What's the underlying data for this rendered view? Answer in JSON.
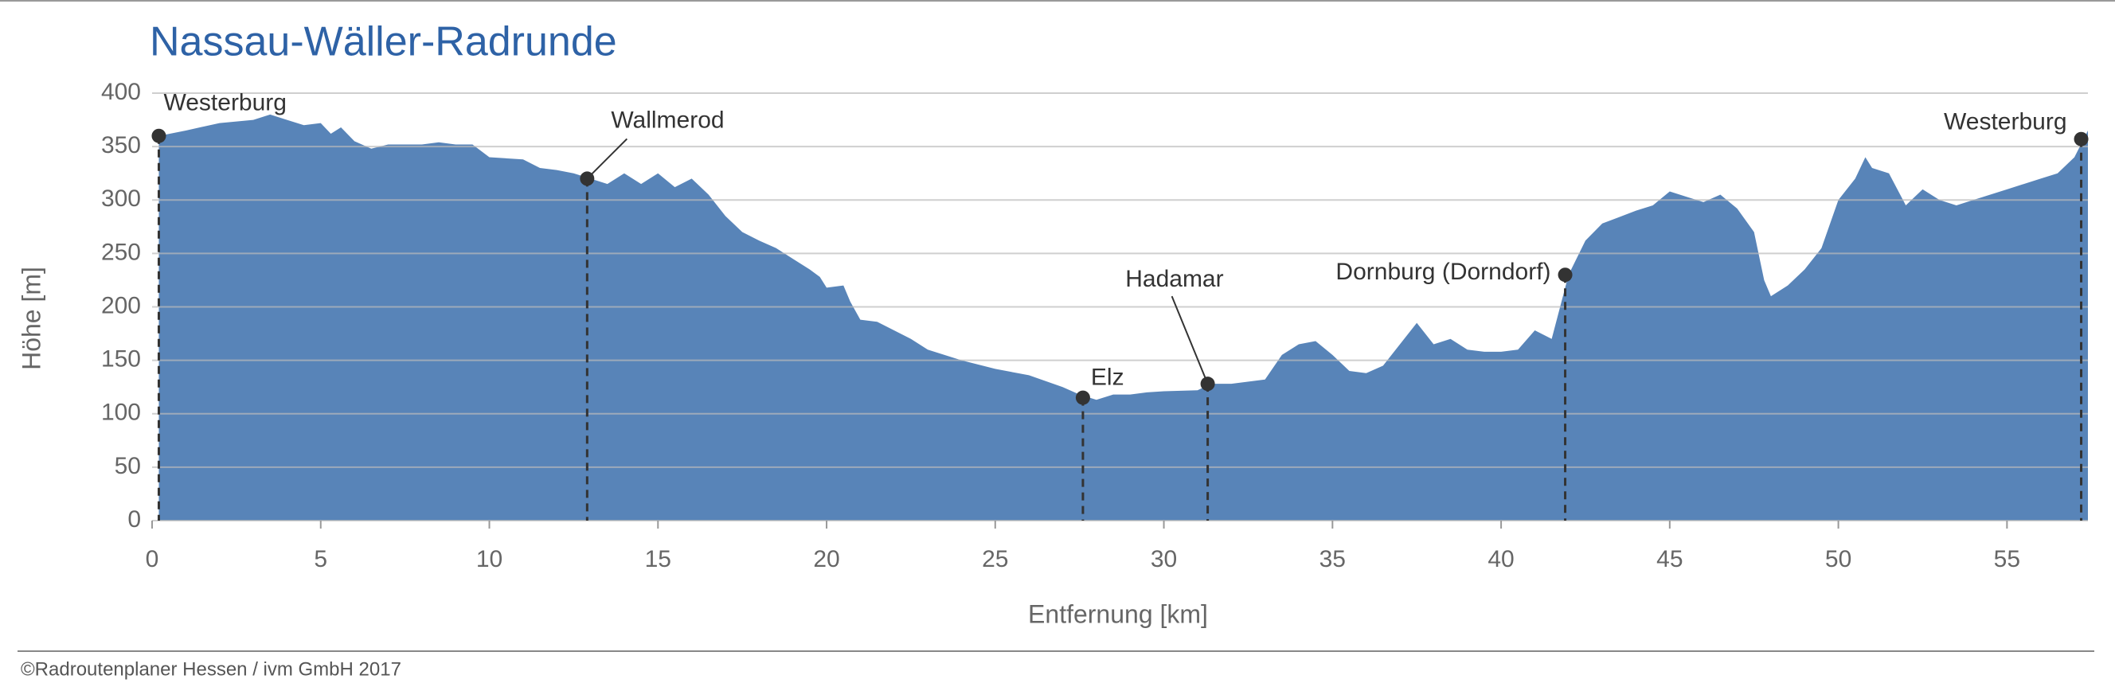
{
  "chart_data": {
    "type": "area",
    "title": "Nassau-Wäller-Radrunde",
    "xlabel": "Entfernung [km]",
    "ylabel": "Höhe [m]",
    "credit": "©Radroutenplaner Hessen / ivm GmbH 2017",
    "color": "#5884b8",
    "grid": true,
    "xlim": [
      0,
      57.4
    ],
    "ylim": [
      0,
      400
    ],
    "xticks": [
      0,
      5,
      10,
      15,
      20,
      25,
      30,
      35,
      40,
      45,
      50,
      55
    ],
    "yticks": [
      0,
      50,
      100,
      150,
      200,
      250,
      300,
      350,
      400
    ],
    "x": [
      0.2,
      1,
      2,
      3,
      3.5,
      4,
      4.5,
      5,
      5.3,
      5.6,
      6,
      6.5,
      7,
      8,
      8.5,
      9,
      9.5,
      10,
      11,
      11.5,
      12,
      12.5,
      13,
      13.5,
      14,
      14.5,
      15,
      15.5,
      16,
      16.5,
      17,
      17.5,
      18,
      18.5,
      19,
      19.5,
      19.8,
      20,
      20.5,
      20.7,
      21,
      21.5,
      22,
      22.5,
      23,
      24,
      25,
      26,
      27,
      27.5,
      28,
      28.5,
      29,
      29.5,
      30,
      31,
      31.4,
      32,
      33,
      33.5,
      34,
      34.5,
      35,
      35.5,
      36,
      36.5,
      37,
      37.5,
      38,
      38.5,
      39,
      39.5,
      40,
      40.5,
      41,
      41.5,
      42,
      42.5,
      43,
      44,
      44.5,
      45,
      45.5,
      46,
      46.5,
      47,
      47.5,
      47.8,
      48,
      48.5,
      49,
      49.5,
      50,
      50.5,
      50.8,
      51,
      51.5,
      52,
      52.5,
      53,
      53.5,
      54,
      55,
      56,
      56.5,
      57,
      57.4
    ],
    "values": [
      360,
      365,
      372,
      375,
      380,
      375,
      370,
      372,
      362,
      368,
      355,
      348,
      352,
      352,
      354,
      352,
      352,
      340,
      338,
      330,
      328,
      325,
      320,
      315,
      325,
      315,
      325,
      312,
      320,
      305,
      285,
      270,
      262,
      255,
      245,
      235,
      228,
      218,
      220,
      205,
      188,
      186,
      178,
      170,
      160,
      150,
      142,
      136,
      125,
      118,
      113,
      118,
      118,
      120,
      121,
      122,
      128,
      128,
      132,
      155,
      165,
      168,
      155,
      140,
      138,
      145,
      165,
      185,
      165,
      170,
      160,
      158,
      158,
      160,
      178,
      170,
      230,
      262,
      278,
      290,
      295,
      308,
      303,
      298,
      305,
      292,
      270,
      225,
      210,
      220,
      235,
      255,
      300,
      320,
      340,
      330,
      325,
      295,
      310,
      300,
      295,
      300,
      310,
      320,
      325,
      340,
      365
    ],
    "annotations": [
      {
        "label": "Westerburg",
        "x": 0.2,
        "y": 360
      },
      {
        "label": "Wallmerod",
        "x": 12.9,
        "y": 320
      },
      {
        "label": "Elz",
        "x": 27.6,
        "y": 115
      },
      {
        "label": "Hadamar",
        "x": 31.3,
        "y": 128
      },
      {
        "label": "Dornburg (Dorndorf)",
        "x": 41.9,
        "y": 230
      },
      {
        "label": "Westerburg",
        "x": 57.2,
        "y": 357
      }
    ]
  }
}
